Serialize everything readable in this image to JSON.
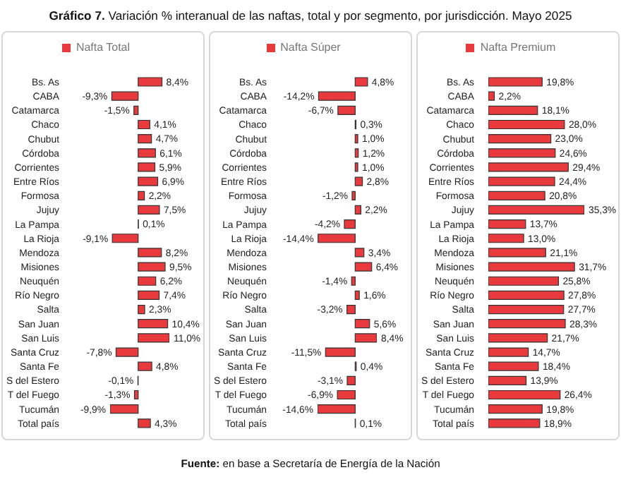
{
  "chart_data": [
    {
      "type": "bar",
      "orientation": "horizontal",
      "title": "Gráfico 7. Variación % interanual de las naftas, total y por segmento, por jurisdicción. Mayo 2025",
      "legend": "top",
      "categories": [
        "Bs. As",
        "CABA",
        "Catamarca",
        "Chaco",
        "Chubut",
        "Córdoba",
        "Corrientes",
        "Entre Ríos",
        "Formosa",
        "Jujuy",
        "La Pampa",
        "La Rioja",
        "Mendoza",
        "Misiones",
        "Neuquén",
        "Río Negro",
        "Salta",
        "San Juan",
        "San Luis",
        "Santa Cruz",
        "Santa Fe",
        "S del Estero",
        "T del Fuego",
        "Tucumán",
        "Total país"
      ],
      "series": [
        {
          "name": "Nafta Total",
          "color": "#e8393d",
          "values": [
            8.4,
            -9.3,
            -1.5,
            4.1,
            4.7,
            6.1,
            5.9,
            6.9,
            2.2,
            7.5,
            0.1,
            -9.1,
            8.2,
            9.5,
            6.2,
            7.4,
            2.3,
            10.4,
            11.0,
            -7.8,
            4.8,
            -0.1,
            -1.3,
            -9.9,
            4.3
          ],
          "value_labels": [
            "8,4%",
            "-9,3%",
            "-1,5%",
            "4,1%",
            "4,7%",
            "6,1%",
            "5,9%",
            "6,9%",
            "2,2%",
            "7,5%",
            "0,1%",
            "-9,1%",
            "8,2%",
            "9,5%",
            "6,2%",
            "7,4%",
            "2,3%",
            "10,4%",
            "11,0%",
            "-7,8%",
            "4,8%",
            "-0,1%",
            "-1,3%",
            "-9,9%",
            "4,3%"
          ]
        }
      ]
    },
    {
      "type": "bar",
      "orientation": "horizontal",
      "legend": "top",
      "categories": [
        "Bs. As",
        "CABA",
        "Catamarca",
        "Chaco",
        "Chubut",
        "Córdoba",
        "Corrientes",
        "Entre Ríos",
        "Formosa",
        "Jujuy",
        "La Pampa",
        "La Rioja",
        "Mendoza",
        "Misiones",
        "Neuquén",
        "Río Negro",
        "Salta",
        "San Juan",
        "San Luis",
        "Santa Cruz",
        "Santa Fe",
        "S del Estero",
        "T del Fuego",
        "Tucumán",
        "Total país"
      ],
      "series": [
        {
          "name": "Nafta Súper",
          "color": "#e8393d",
          "values": [
            4.8,
            -14.2,
            -6.7,
            0.3,
            1.0,
            1.2,
            1.0,
            2.8,
            -1.2,
            2.2,
            -4.2,
            -14.4,
            3.4,
            6.4,
            -1.4,
            1.6,
            -3.2,
            5.6,
            8.4,
            -11.5,
            0.4,
            -3.1,
            -6.9,
            -14.6,
            0.1
          ],
          "value_labels": [
            "4,8%",
            "-14,2%",
            "-6,7%",
            "0,3%",
            "1,0%",
            "1,2%",
            "1,0%",
            "2,8%",
            "-1,2%",
            "2,2%",
            "-4,2%",
            "-14,4%",
            "3,4%",
            "6,4%",
            "-1,4%",
            "1,6%",
            "-3,2%",
            "5,6%",
            "8,4%",
            "-11,5%",
            "0,4%",
            "-3,1%",
            "-6,9%",
            "-14,6%",
            "0,1%"
          ]
        }
      ]
    },
    {
      "type": "bar",
      "orientation": "horizontal",
      "legend": "top",
      "annotations": [
        "Fuente: en base a Secretaría de Energía de la Nación"
      ],
      "categories": [
        "Bs. As",
        "CABA",
        "Catamarca",
        "Chaco",
        "Chubut",
        "Córdoba",
        "Corrientes",
        "Entre Ríos",
        "Formosa",
        "Jujuy",
        "La Pampa",
        "La Rioja",
        "Mendoza",
        "Misiones",
        "Neuquén",
        "Río Negro",
        "Salta",
        "San Juan",
        "San Luis",
        "Santa Cruz",
        "Santa Fe",
        "S del Estero",
        "T del Fuego",
        "Tucumán",
        "Total país"
      ],
      "series": [
        {
          "name": "Nafta Premium",
          "color": "#e8393d",
          "values": [
            19.8,
            2.2,
            18.1,
            28.0,
            23.0,
            24.6,
            29.4,
            24.4,
            20.8,
            35.3,
            13.7,
            13.0,
            21.1,
            31.7,
            25.8,
            27.8,
            27.7,
            28.3,
            21.7,
            14.7,
            18.4,
            13.9,
            26.4,
            19.8,
            18.9
          ],
          "value_labels": [
            "19,8%",
            "2,2%",
            "18,1%",
            "28,0%",
            "23,0%",
            "24,6%",
            "29,4%",
            "24,4%",
            "20,8%",
            "35,3%",
            "13,7%",
            "13,0%",
            "21,1%",
            "31,7%",
            "25,8%",
            "27,8%",
            "27,7%",
            "28,3%",
            "21,7%",
            "14,7%",
            "18,4%",
            "13,9%",
            "26,4%",
            "19,8%",
            "18,9%"
          ]
        }
      ]
    }
  ]
}
